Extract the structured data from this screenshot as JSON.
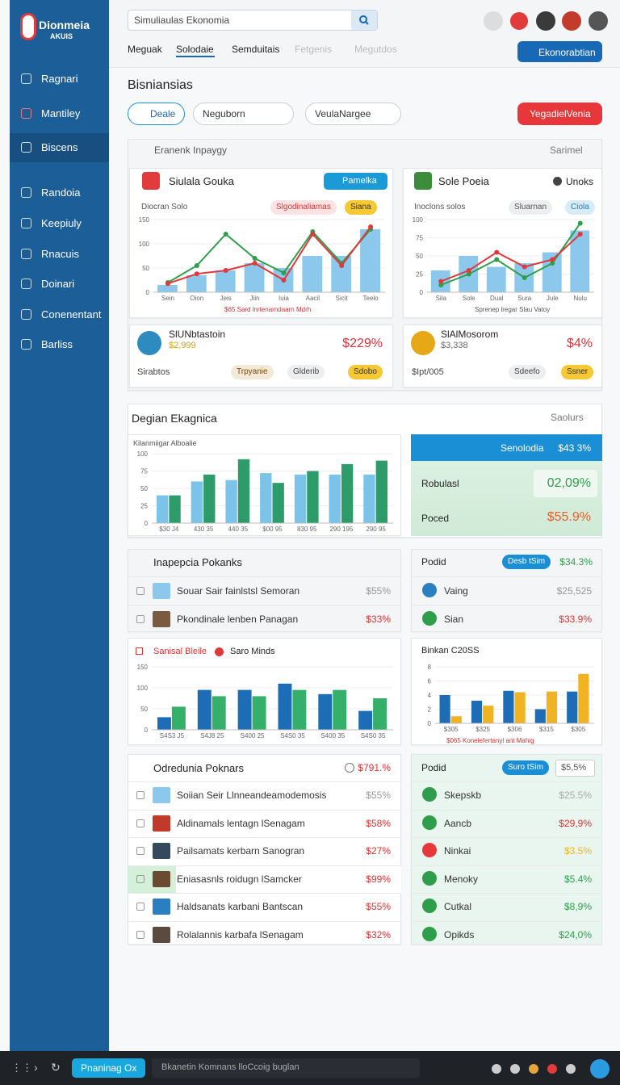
{
  "brand": {
    "name": "Dionmeia",
    "sub": "AKUIS"
  },
  "nav": [
    "Ragnari",
    "Mantiley",
    "Biscens",
    "Randoia",
    "Keepiuly",
    "Rnacuis",
    "Doinari",
    "Conenentant",
    "Barliss"
  ],
  "search": "Simuliaulas Ekonomia",
  "tabs": [
    "Meguak",
    "Solodaie",
    "Semduitais",
    "Fetgenis",
    "Megutdos"
  ],
  "header_button": "Ekonorabtian",
  "page_title": "Bisniansias",
  "filters": [
    "Deale",
    "Neguborn",
    "VeulaNargee"
  ],
  "filter_button": "YegadielVenia",
  "overview": {
    "title": "Eranenk Inpaygy",
    "link": "Sarimel",
    "card1": {
      "title": "Siulala Gouka",
      "button": "Pamelka",
      "subtitle": "Diocran Solo",
      "chips": [
        "Slgodinaliamas",
        "Siana"
      ],
      "caption": "$65 Sard lnrtenarndaarn Mdrh",
      "chart": {
        "type": "bar",
        "categories": [
          "Sein",
          "Oion",
          "Jeis",
          "Jiin",
          "Iuia",
          "Aacil",
          "Sicit",
          "Teelo"
        ],
        "ylim": [
          0,
          150
        ],
        "yticks": [
          0,
          50,
          100,
          150
        ],
        "series": [
          {
            "type": "bar",
            "color": "#8cc8ec",
            "values": [
              15,
              35,
              45,
              60,
              50,
              75,
              75,
              130
            ]
          },
          {
            "type": "line",
            "color": "#2e9e4a",
            "values": [
              20,
              55,
              120,
              70,
              40,
              125,
              60,
              130
            ]
          },
          {
            "type": "line",
            "color": "#e0383b",
            "values": [
              18,
              38,
              45,
              60,
              25,
              120,
              55,
              135
            ]
          }
        ]
      }
    },
    "card2": {
      "title": "Sole Poeia",
      "badge": "Unoks",
      "subtitle": "Inoclons solos",
      "chips": [
        "Sluarnan",
        "Ciola"
      ],
      "caption": "Sprenep lregar Slau Vatoy",
      "chart": {
        "type": "bar",
        "categories": [
          "Sila",
          "Sole",
          "Dual",
          "Sura",
          "Jule",
          "Nulu"
        ],
        "ylim": [
          0,
          100
        ],
        "yticks": [
          0,
          25,
          50,
          75,
          100
        ],
        "series": [
          {
            "type": "bar",
            "color": "#8cc8ec",
            "values": [
              30,
              50,
              35,
              40,
              55,
              85
            ]
          },
          {
            "type": "line",
            "color": "#2e9e4a",
            "values": [
              10,
              25,
              45,
              20,
              40,
              95
            ]
          },
          {
            "type": "line",
            "color": "#e0383b",
            "values": [
              15,
              30,
              55,
              35,
              45,
              80
            ]
          }
        ]
      }
    },
    "stat1": {
      "title": "SlUNbtastoin",
      "sub": "$2,999",
      "value": "$229%",
      "label": "Sirabtos",
      "chips": [
        "Trpyanie",
        "Glderib",
        "Sdobo"
      ]
    },
    "stat2": {
      "title": "SlAlMosorom",
      "sub": "$3,338",
      "value": "$4%",
      "label": "$Ipt/005",
      "chips": [
        "Sdeefo",
        "Ssner"
      ]
    }
  },
  "design": {
    "title": "Degian Ekagnica",
    "link": "Saolurs",
    "chart_title": "Kilanmiigar Alboalie",
    "chart": {
      "type": "bar",
      "categories": [
        "$30 J4",
        "430 35",
        "440 35",
        "$00 95",
        "830 95",
        "290 195",
        "290 95"
      ],
      "ylim": [
        0,
        100
      ],
      "yticks": [
        0,
        25,
        50,
        75,
        100
      ],
      "series": [
        {
          "type": "bar",
          "color": "#7cc3ea",
          "values": [
            40,
            60,
            62,
            72,
            70,
            70,
            70
          ]
        },
        {
          "type": "bar",
          "color": "#2d9c6a",
          "values": [
            40,
            70,
            92,
            58,
            75,
            85,
            90
          ]
        }
      ]
    },
    "summary": {
      "header": "Senolodia",
      "header_value": "$43 3%",
      "rows": [
        {
          "label": "Robulasl",
          "value": "02,09%"
        },
        {
          "label": "Poced",
          "value": "$55.9%"
        }
      ]
    }
  },
  "list1": {
    "title": "Inapepcia Pokanks",
    "rows": [
      {
        "label": "Souar Sair fainlstsl Semoran",
        "value": "$55%"
      },
      {
        "label": "Pkondinale lenben Panagan",
        "value": "$33%"
      }
    ]
  },
  "side1": {
    "title": "Podid",
    "chip": "Desb tSim",
    "value": "$34.3%",
    "rows": [
      {
        "label": "Vaing",
        "value": "$25,525"
      },
      {
        "label": "Sian",
        "value": "$33.9%"
      }
    ]
  },
  "chart3": {
    "type": "bar",
    "categories": [
      "S4S3 J5",
      "S4J8 25",
      "S400 25",
      "S4S0 35",
      "S400 35",
      "S4S0 35"
    ],
    "ylim": [
      0,
      150
    ],
    "yticks": [
      0,
      50,
      100,
      150
    ],
    "series": [
      {
        "name": "Sanisal Bleile",
        "type": "bar",
        "color": "#1c6db5",
        "values": [
          30,
          95,
          95,
          110,
          85,
          45
        ]
      },
      {
        "name": "Saro Minds",
        "type": "bar",
        "color": "#35b06b",
        "values": [
          55,
          80,
          80,
          95,
          95,
          75
        ]
      }
    ]
  },
  "chart4": {
    "type": "bar",
    "title": "Binkan C20SS",
    "caption": "$065 Konelefertanyl ant Mahig",
    "categories": [
      "$305",
      "$325",
      "$306",
      "$315",
      "$305"
    ],
    "ylim": [
      0,
      8
    ],
    "yticks": [
      0,
      2,
      4,
      6,
      8
    ],
    "series": [
      {
        "type": "bar",
        "color": "#1c6db5",
        "values": [
          4,
          3.2,
          4.6,
          2,
          4.5
        ]
      },
      {
        "type": "bar",
        "color": "#f0b323",
        "values": [
          1,
          2.5,
          4.4,
          4.5,
          7
        ]
      }
    ]
  },
  "list2": {
    "title": "Odredunia Poknars",
    "value": "$791.%",
    "rows": [
      {
        "label": "Soiian Seir Llnneandeamodemosis",
        "value": "$55%"
      },
      {
        "label": "Aldinamals lentagn lSenagam",
        "value": "$58%"
      },
      {
        "label": "Pailsamats kerbarn Sanogran",
        "value": "$27%"
      },
      {
        "label": "Eniasasnls roidugn lSamcker",
        "value": "$99%"
      },
      {
        "label": "Haldsanats karbani Bantscan",
        "value": "$55%"
      },
      {
        "label": "Rolalannis karbafa lSenagam",
        "value": "$32%"
      }
    ]
  },
  "side2": {
    "title": "Podid",
    "chip": "Suro tSim",
    "value": "$5,5%",
    "rows": [
      {
        "label": "Skepskb",
        "value": "$25.5%"
      },
      {
        "label": "Aancb",
        "value": "$29,9%"
      },
      {
        "label": "Ninkai",
        "value": "$3.5%"
      },
      {
        "label": "Menoky",
        "value": "$5.4%"
      },
      {
        "label": "Cutkal",
        "value": "$8,9%"
      },
      {
        "label": "Opikds",
        "value": "$24,0%"
      }
    ]
  },
  "footer": {
    "button": "Pnaninag Ox",
    "text": "Bkanetin Komnans lloCcoig buglan"
  }
}
